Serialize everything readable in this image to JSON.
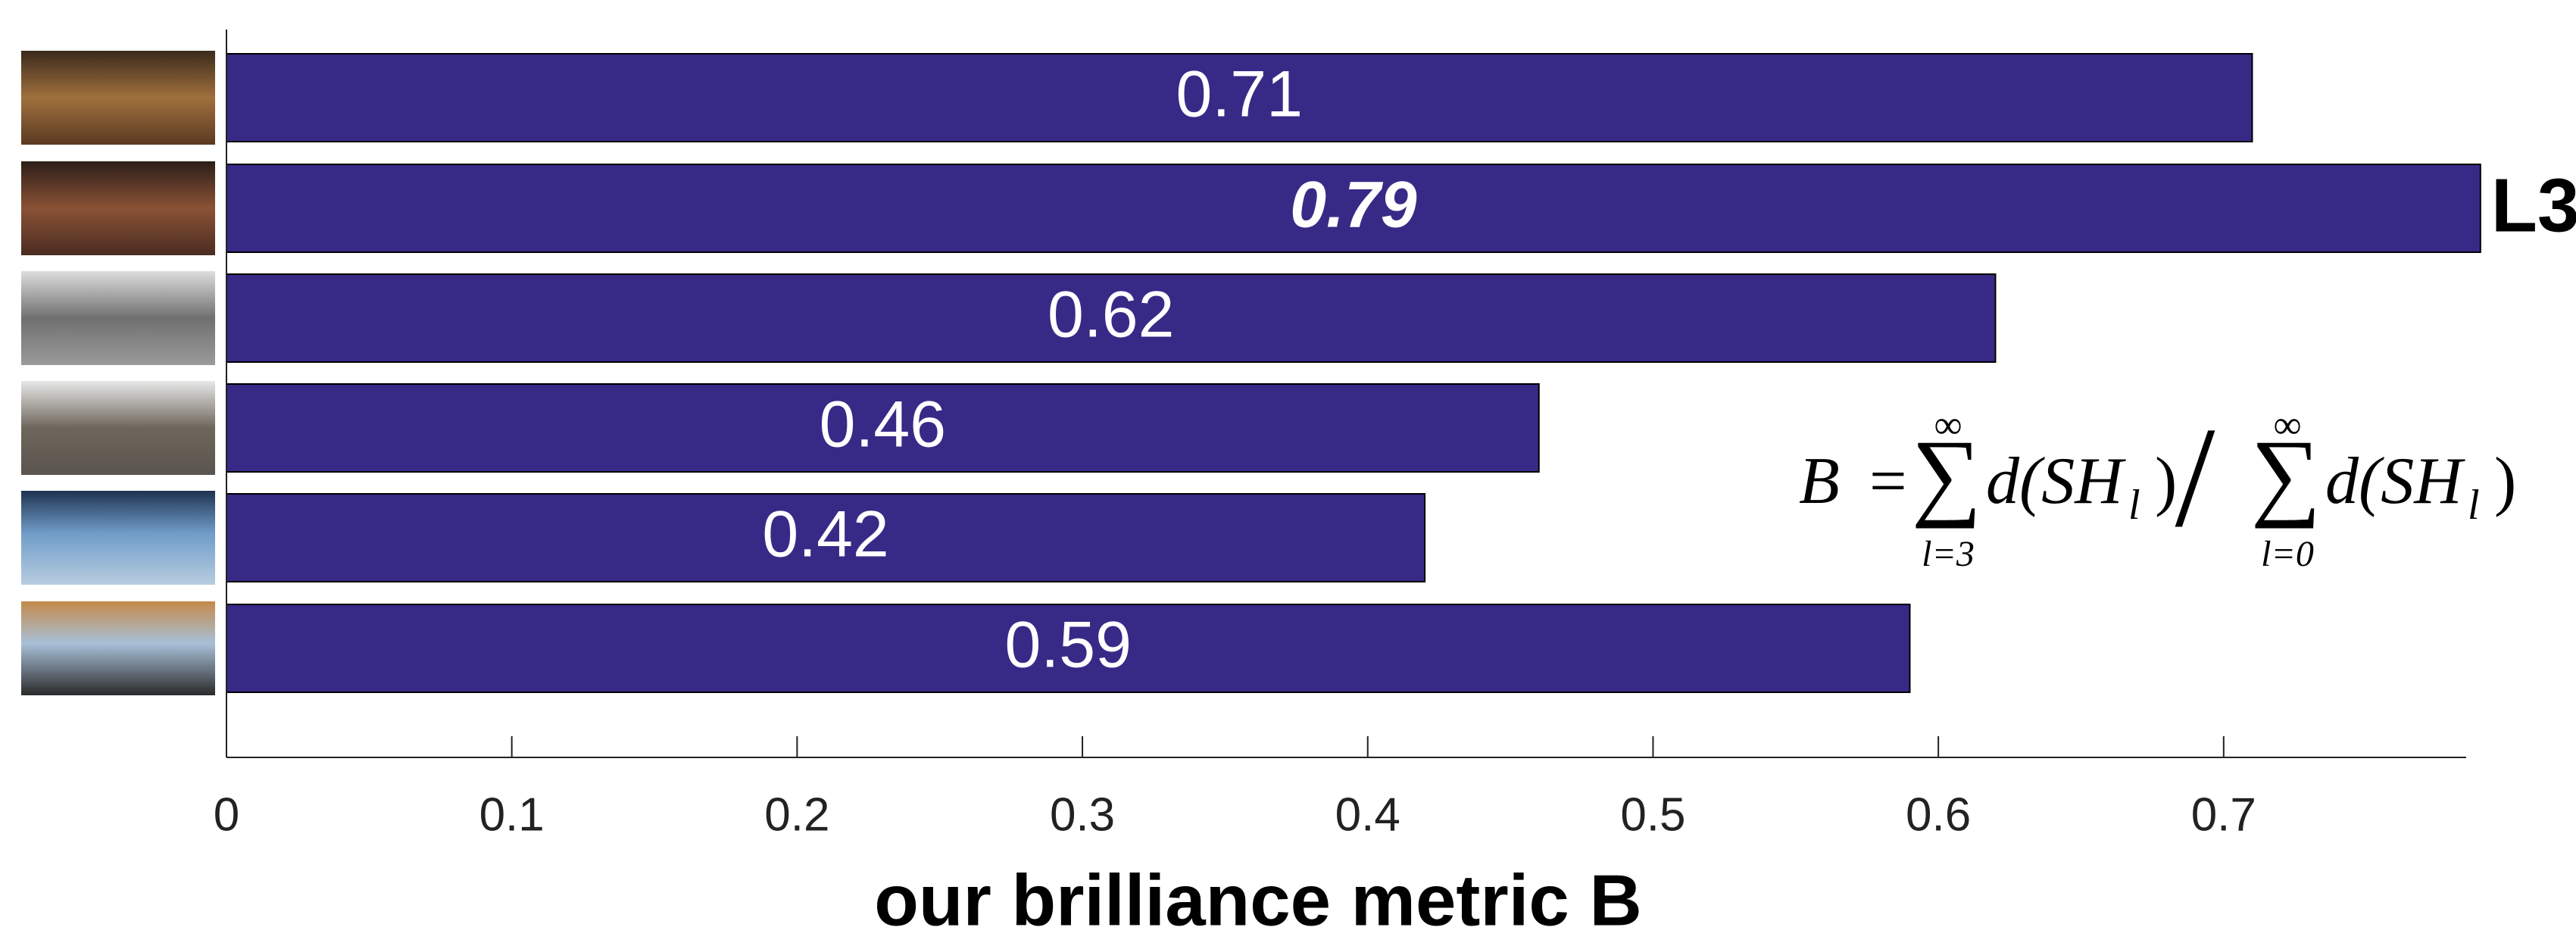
{
  "chart_data": {
    "type": "barh",
    "xlabel": "our brilliance metric B",
    "categories": [
      null,
      null,
      null,
      null,
      null,
      null
    ],
    "values": [
      0.71,
      0.79,
      0.62,
      0.46,
      0.42,
      0.59
    ],
    "color": "#372a87",
    "highlight": 1,
    "xlim": [
      0,
      0.785
    ],
    "xticks": [
      0,
      0.1,
      0.2,
      0.3,
      0.4,
      0.5,
      0.6,
      0.7
    ],
    "grid": false,
    "annotation": "L3",
    "formula": [
      "B",
      "=",
      "∑",
      "∞",
      "l=3",
      "d(SH",
      "l",
      ")",
      "/",
      "∑",
      "∞",
      "l=0",
      "d(SH",
      "l",
      ")"
    ]
  }
}
